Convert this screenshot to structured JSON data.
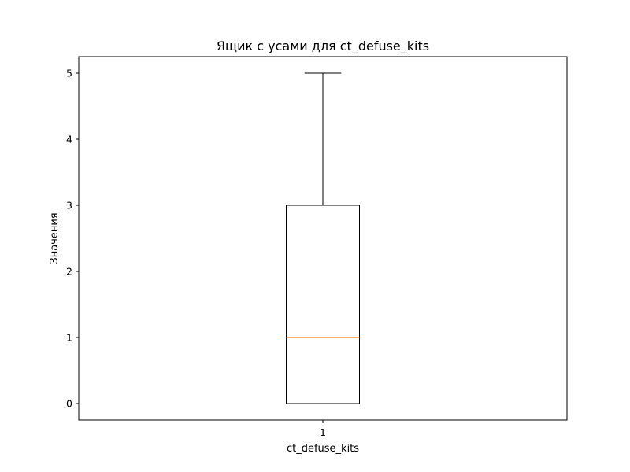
{
  "chart_data": {
    "type": "box",
    "title": "Ящик с усами для ct_defuse_kits",
    "xlabel": "ct_defuse_kits",
    "ylabel": "Значения",
    "categories": [
      "1"
    ],
    "ylim": [
      -0.25,
      5.25
    ],
    "yticks": [
      "0",
      "1",
      "2",
      "3",
      "4",
      "5"
    ],
    "boxes": [
      {
        "category": "1",
        "whisker_low": 0,
        "q1": 0,
        "median": 1,
        "q3": 3,
        "whisker_high": 5
      }
    ],
    "grid": false,
    "colors": {
      "box": "#000000",
      "median": "#ff7f0e"
    }
  }
}
